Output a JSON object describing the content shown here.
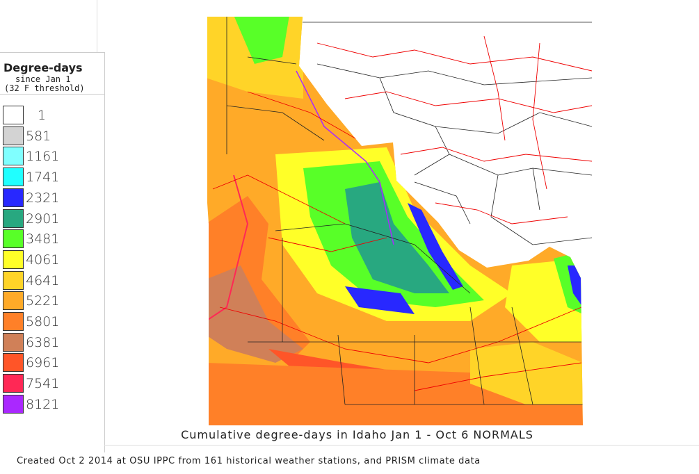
{
  "legend": {
    "title": "Degree-days",
    "subtitle1": "since Jan 1",
    "subtitle2": "(32 F threshold)",
    "items": [
      {
        "value": "1",
        "color": "#ffffff"
      },
      {
        "value": "581",
        "color": "#d3d3d3"
      },
      {
        "value": "1161",
        "color": "#80ffff"
      },
      {
        "value": "1741",
        "color": "#20ffff"
      },
      {
        "value": "2321",
        "color": "#2828ff"
      },
      {
        "value": "2901",
        "color": "#28a880"
      },
      {
        "value": "3481",
        "color": "#58ff28"
      },
      {
        "value": "4061",
        "color": "#ffff28"
      },
      {
        "value": "4641",
        "color": "#ffd428"
      },
      {
        "value": "5221",
        "color": "#ffaa28"
      },
      {
        "value": "5801",
        "color": "#ff8028"
      },
      {
        "value": "6381",
        "color": "#d08058"
      },
      {
        "value": "6961",
        "color": "#ff5528"
      },
      {
        "value": "7541",
        "color": "#ff2855"
      },
      {
        "value": "8121",
        "color": "#aa28ff"
      }
    ]
  },
  "map": {
    "region": "Idaho"
  },
  "title": "Cumulative degree-days in Idaho  Jan 1 - Oct 6 NORMALS",
  "footer": "Created Oct 2 2014 at OSU IPPC from 161 historical weather stations, and PRISM climate data"
}
